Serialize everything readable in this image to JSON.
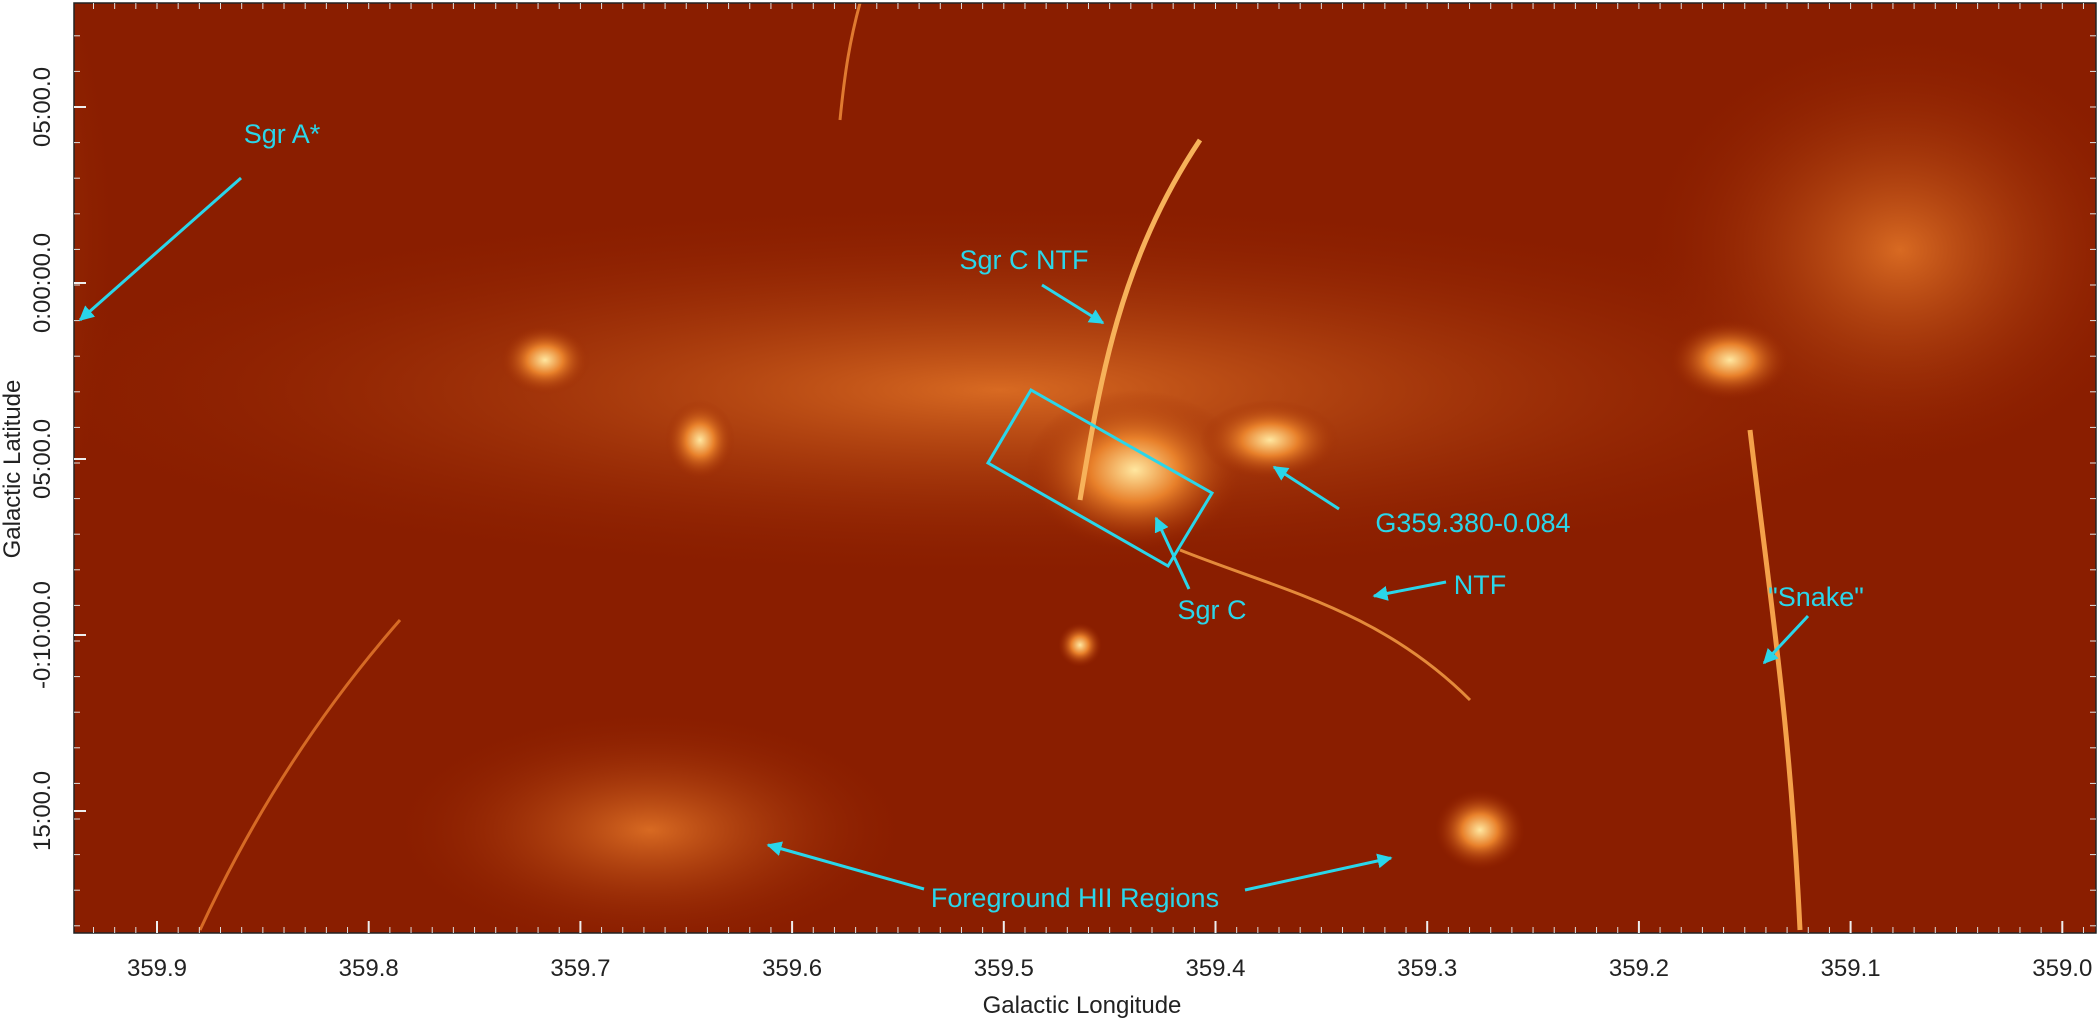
{
  "x_axis": {
    "title": "Galactic Longitude",
    "ticks": [
      "359.9",
      "359.8",
      "359.7",
      "359.6",
      "359.5",
      "359.4",
      "359.3",
      "359.2",
      "359.1",
      "359.0"
    ]
  },
  "y_axis": {
    "title": "Galactic Latitude",
    "ticks": [
      "05:00.0",
      "0:00:00.0",
      "05:00.0",
      "-0:10:00.0",
      "15:00.0"
    ]
  },
  "annotations": [
    {
      "label": "Sgr A*"
    },
    {
      "label": "Sgr C NTF"
    },
    {
      "label": "G359.380-0.084"
    },
    {
      "label": "Sgr C"
    },
    {
      "label": "NTF"
    },
    {
      "label": "\"Snake\""
    },
    {
      "label": "Foreground HII Regions"
    }
  ]
}
